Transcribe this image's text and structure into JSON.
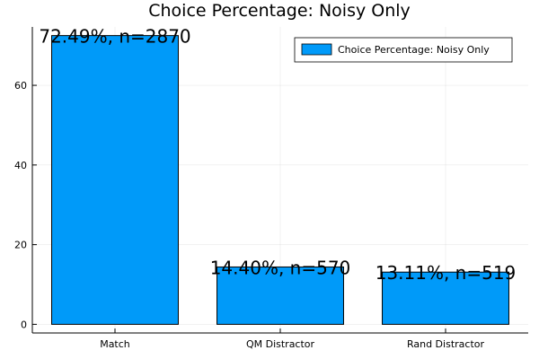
{
  "chart_data": {
    "type": "bar",
    "title": "Choice Percentage: Noisy Only",
    "categories": [
      "Match",
      "QM Distractor",
      "Rand Distractor"
    ],
    "series": [
      {
        "name": "Choice Percentage: Noisy Only",
        "values": [
          72.49,
          14.4,
          13.11
        ],
        "color": "#009af9"
      }
    ],
    "data_labels": [
      "72.49%, n=2870",
      "14.40%, n=570",
      "13.11%, n=519"
    ],
    "yticks": [
      0,
      20,
      40,
      60
    ],
    "ylim": [
      -2.17,
      74.66
    ],
    "grid": true,
    "legend_position": "top-right"
  }
}
